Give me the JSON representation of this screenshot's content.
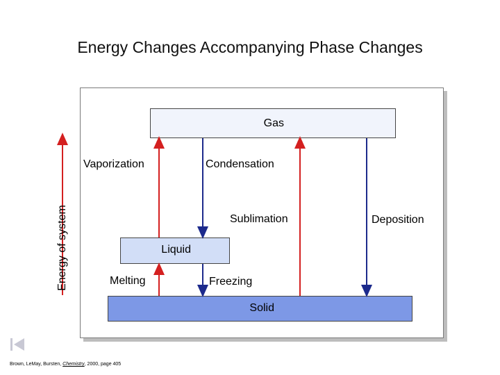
{
  "title": "Energy Changes Accompanying Phase Changes",
  "axis_label": "Energy of system",
  "phases": {
    "gas": "Gas",
    "liquid": "Liquid",
    "solid": "Solid"
  },
  "transitions": {
    "vaporization": "Vaporization",
    "condensation": "Condensation",
    "sublimation": "Sublimation",
    "deposition": "Deposition",
    "melting": "Melting",
    "freezing": "Freezing"
  },
  "citation": {
    "authors": "Brown, LeMay, Bursten,",
    "book": "Chemistry",
    "rest": "2000, page 405"
  },
  "colors": {
    "up_arrow": "#d42020",
    "down_arrow": "#1c2a8c"
  },
  "icons": {
    "nav": "first-slide-icon"
  }
}
